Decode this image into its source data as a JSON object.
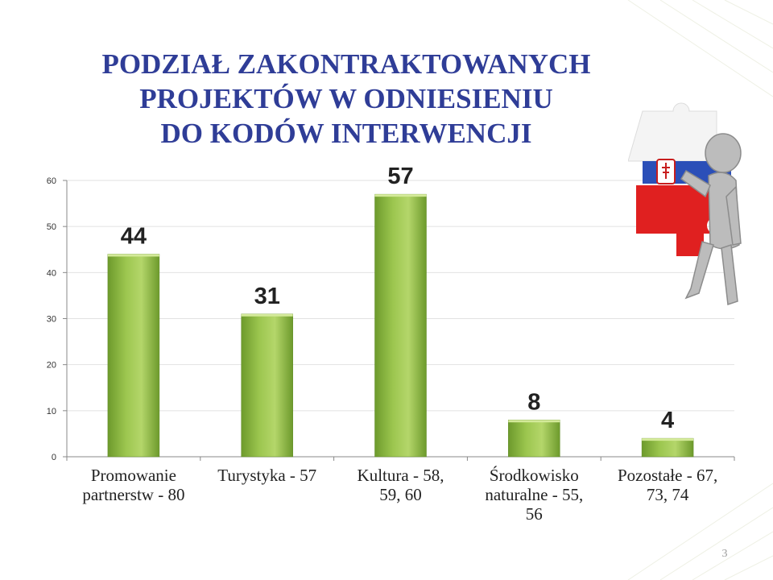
{
  "title": [
    "PODZIAŁ ZAKONTRAKTOWANYCH",
    "PROJEKTÓW W ODNIESIENIU",
    "DO KODÓW INTERWENCJI"
  ],
  "page_number": "3",
  "colors": {
    "title": "#2f3d97",
    "bar_light": "#b4d66a",
    "bar_dark": "#6d9a2c",
    "axis": "#888888"
  },
  "illustration": "puzzle-figure-with-slovak-flag",
  "chart_data": {
    "type": "bar",
    "categories": [
      [
        "Promowanie",
        "partnerstw - 80"
      ],
      [
        "Turystyka - 57"
      ],
      [
        "Kultura - 58,",
        "59, 60"
      ],
      [
        "Środkowisko",
        "naturalne - 55,",
        "56"
      ],
      [
        "Pozostałe - 67,",
        "73, 74"
      ]
    ],
    "values": [
      44,
      31,
      57,
      8,
      4
    ],
    "data_labels": [
      "44",
      "31",
      "57",
      "8",
      "4"
    ],
    "ylim": [
      0,
      60
    ],
    "yticks": [
      "0",
      "10",
      "20",
      "30",
      "40",
      "50",
      "60"
    ],
    "grid": true,
    "legend": "none"
  }
}
